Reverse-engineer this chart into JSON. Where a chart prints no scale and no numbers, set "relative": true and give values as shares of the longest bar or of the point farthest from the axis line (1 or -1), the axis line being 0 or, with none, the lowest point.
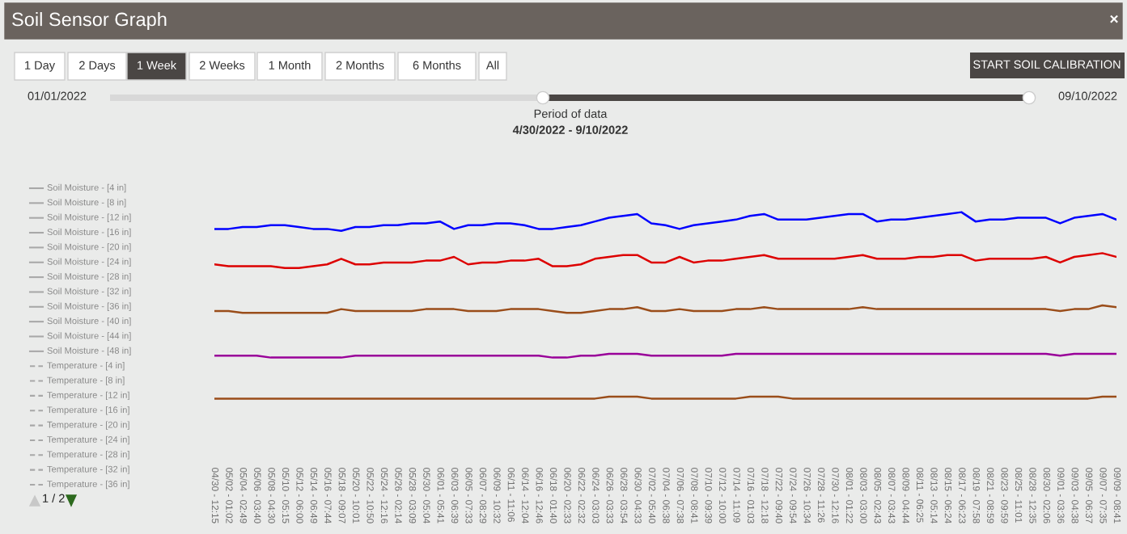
{
  "chart_data": {
    "type": "line",
    "title": "Soil Sensor Graph",
    "relative": true,
    "grid": false,
    "marker": "none",
    "line_style": "solid",
    "categories": [
      "04/30 - 12:15",
      "05/02 - 01:02",
      "05/04 - 02:49",
      "05/06 - 03:40",
      "05/08 - 04:30",
      "05/10 - 05:15",
      "05/12 - 06:00",
      "05/14 - 06:49",
      "05/16 - 07:44",
      "05/18 - 09:07",
      "05/20 - 10:01",
      "05/22 - 10:50",
      "05/24 - 12:16",
      "05/26 - 02:14",
      "05/28 - 03:09",
      "05/30 - 05:04",
      "06/01 - 05:41",
      "06/03 - 06:39",
      "06/05 - 07:33",
      "06/07 - 08:29",
      "06/09 - 10:32",
      "06/11 - 11:06",
      "06/14 - 12:04",
      "06/16 - 12:46",
      "06/18 - 01:40",
      "06/20 - 02:33",
      "06/22 - 02:32",
      "06/24 - 03:03",
      "06/26 - 03:33",
      "06/28 - 03:54",
      "06/30 - 04:33",
      "07/02 - 05:40",
      "07/04 - 06:38",
      "07/06 - 07:38",
      "07/08 - 08:41",
      "07/10 - 09:39",
      "07/12 - 10:00",
      "07/14 - 11:09",
      "07/16 - 01:03",
      "07/18 - 12:18",
      "07/22 - 09:40",
      "07/24 - 09:54",
      "07/26 - 10:34",
      "07/28 - 11:26",
      "07/30 - 12:16",
      "08/01 - 01:22",
      "08/03 - 03:00",
      "08/05 - 02:43",
      "08/07 - 03:43",
      "08/09 - 04:44",
      "08/11 - 06:25",
      "08/13 - 05:14",
      "08/15 - 06:24",
      "08/17 - 06:23",
      "08/19 - 07:58",
      "08/21 - 08:59",
      "08/23 - 09:59",
      "08/25 - 11:01",
      "08/28 - 12:35",
      "08/30 - 02:06",
      "09/01 - 03:36",
      "09/03 - 04:38",
      "09/05 - 06:37",
      "09/07 - 07:35",
      "09/09 - 08:41"
    ],
    "series": [
      {
        "color": "#0000ff",
        "values": [
          0.91,
          0.91,
          0.92,
          0.92,
          0.93,
          0.93,
          0.92,
          0.91,
          0.91,
          0.9,
          0.92,
          0.92,
          0.93,
          0.93,
          0.94,
          0.94,
          0.95,
          0.91,
          0.93,
          0.93,
          0.94,
          0.94,
          0.93,
          0.91,
          0.91,
          0.92,
          0.93,
          0.95,
          0.97,
          0.98,
          0.99,
          0.94,
          0.93,
          0.91,
          0.93,
          0.94,
          0.95,
          0.96,
          0.98,
          0.99,
          0.96,
          0.96,
          0.96,
          0.97,
          0.98,
          0.99,
          0.99,
          0.95,
          0.96,
          0.96,
          0.97,
          0.98,
          0.99,
          1.0,
          0.95,
          0.96,
          0.96,
          0.97,
          0.97,
          0.97,
          0.94,
          0.97,
          0.98,
          0.99,
          0.96
        ]
      },
      {
        "color": "#dd0000",
        "values": [
          0.72,
          0.71,
          0.71,
          0.71,
          0.71,
          0.7,
          0.7,
          0.71,
          0.72,
          0.75,
          0.72,
          0.72,
          0.73,
          0.73,
          0.73,
          0.74,
          0.74,
          0.76,
          0.72,
          0.73,
          0.73,
          0.74,
          0.74,
          0.75,
          0.71,
          0.71,
          0.72,
          0.75,
          0.76,
          0.77,
          0.77,
          0.73,
          0.73,
          0.76,
          0.73,
          0.74,
          0.74,
          0.75,
          0.76,
          0.77,
          0.75,
          0.75,
          0.75,
          0.75,
          0.75,
          0.76,
          0.77,
          0.75,
          0.75,
          0.75,
          0.76,
          0.76,
          0.77,
          0.77,
          0.74,
          0.75,
          0.75,
          0.75,
          0.75,
          0.76,
          0.73,
          0.76,
          0.77,
          0.78,
          0.76
        ]
      },
      {
        "color": "#9a4d1a",
        "values": [
          0.47,
          0.47,
          0.46,
          0.46,
          0.46,
          0.46,
          0.46,
          0.46,
          0.46,
          0.48,
          0.47,
          0.47,
          0.47,
          0.47,
          0.47,
          0.48,
          0.48,
          0.48,
          0.47,
          0.47,
          0.47,
          0.48,
          0.48,
          0.48,
          0.47,
          0.46,
          0.46,
          0.47,
          0.48,
          0.48,
          0.49,
          0.47,
          0.47,
          0.48,
          0.47,
          0.47,
          0.47,
          0.48,
          0.48,
          0.49,
          0.48,
          0.48,
          0.48,
          0.48,
          0.48,
          0.48,
          0.49,
          0.48,
          0.48,
          0.48,
          0.48,
          0.48,
          0.48,
          0.48,
          0.48,
          0.48,
          0.48,
          0.48,
          0.48,
          0.48,
          0.47,
          0.48,
          0.48,
          0.5,
          0.49
        ]
      },
      {
        "color": "#990099",
        "values": [
          0.23,
          0.23,
          0.23,
          0.23,
          0.22,
          0.22,
          0.22,
          0.22,
          0.22,
          0.22,
          0.23,
          0.23,
          0.23,
          0.23,
          0.23,
          0.23,
          0.23,
          0.23,
          0.23,
          0.23,
          0.23,
          0.23,
          0.23,
          0.23,
          0.22,
          0.22,
          0.23,
          0.23,
          0.24,
          0.24,
          0.24,
          0.23,
          0.23,
          0.23,
          0.23,
          0.23,
          0.23,
          0.24,
          0.24,
          0.24,
          0.24,
          0.24,
          0.24,
          0.24,
          0.24,
          0.24,
          0.24,
          0.24,
          0.24,
          0.24,
          0.24,
          0.24,
          0.24,
          0.24,
          0.24,
          0.24,
          0.24,
          0.24,
          0.24,
          0.24,
          0.23,
          0.24,
          0.24,
          0.24,
          0.24
        ]
      },
      {
        "color": "#9a4d1a",
        "values": [
          0.0,
          0.0,
          0.0,
          0.0,
          0.0,
          0.0,
          0.0,
          0.0,
          0.0,
          0.0,
          0.0,
          0.0,
          0.0,
          0.0,
          0.0,
          0.0,
          0.0,
          0.0,
          0.0,
          0.0,
          0.0,
          0.0,
          0.0,
          0.0,
          0.0,
          0.0,
          0.0,
          0.0,
          0.01,
          0.01,
          0.01,
          0.0,
          0.0,
          0.0,
          0.0,
          0.0,
          0.0,
          0.0,
          0.01,
          0.01,
          0.01,
          0.0,
          0.0,
          0.0,
          0.0,
          0.0,
          0.0,
          0.0,
          0.0,
          0.0,
          0.0,
          0.0,
          0.0,
          0.0,
          0.0,
          0.0,
          0.0,
          0.0,
          0.0,
          0.0,
          0.0,
          0.0,
          0.0,
          0.01,
          0.01
        ]
      }
    ],
    "annotations": [
      "1 Day",
      "2 Days",
      "1 Week",
      "2 Weeks",
      "1 Month",
      "2 Months",
      "6 Months",
      "All",
      "START SOIL CALIBRATION",
      "01/01/2022",
      "09/10/2022",
      "Period of data",
      "4/30/2022 - 9/10/2022",
      "Soil Moisture - [4 in]",
      "Soil Moisture - [8 in]",
      "Soil Moisture - [12 in]",
      "Soil Moisture - [16 in]",
      "Soil Moisture - [20 in]",
      "Soil Moisture - [24 in]",
      "Soil Moisture - [28 in]",
      "Soil Moisture - [32 in]",
      "Soil Moisture - [36 in]",
      "Soil Moisture - [40 in]",
      "Soil Moisture - [44 in]",
      "Soil Moisture - [48 in]",
      "Temperature - [4 in]",
      "Temperature - [8 in]",
      "Temperature - [12 in]",
      "Temperature - [16 in]",
      "Temperature - [20 in]",
      "Temperature - [24 in]",
      "Temperature - [28 in]",
      "Temperature - [32 in]",
      "Temperature - [36 in]",
      "1 / 2",
      "×"
    ]
  }
}
